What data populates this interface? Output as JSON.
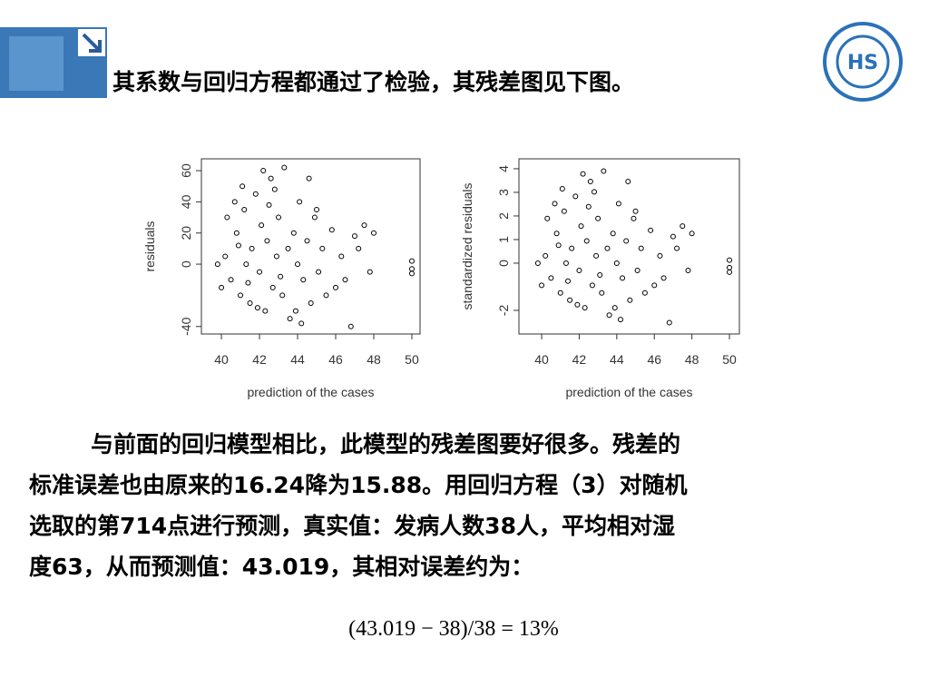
{
  "header": {
    "title": "其系数与回归方程都通过了检验，其残差图见下图。"
  },
  "chart_data": [
    {
      "type": "scatter",
      "xlabel": "prediction of the cases",
      "ylabel": "residuals",
      "color": "#000000",
      "xlim": [
        38.95,
        50.43
      ],
      "xticks": [
        40,
        42,
        44,
        46,
        48,
        50
      ],
      "ylim": [
        -44.8,
        67.6
      ],
      "yticks": [
        -40,
        0,
        20,
        40,
        60
      ],
      "x": [
        40.2,
        40.5,
        40.8,
        41.0,
        41.2,
        41.3,
        41.5,
        41.6,
        41.8,
        42.0,
        42.1,
        42.3,
        42.4,
        42.6,
        42.7,
        42.9,
        43.0,
        43.2,
        43.3,
        43.5,
        43.6,
        43.8,
        44.0,
        44.1,
        44.3,
        44.5,
        44.7,
        44.9,
        45.1,
        45.3,
        45.5,
        45.8,
        46.0,
        46.3,
        46.8,
        47.0,
        47.2,
        47.5,
        47.8,
        48.0,
        39.8,
        40.0,
        40.3,
        41.9,
        42.5,
        43.9,
        41.1,
        40.7,
        50.0,
        50.0,
        50.0,
        44.6,
        42.2,
        43.1,
        41.4,
        40.9,
        45.0,
        46.5,
        44.2,
        42.8
      ],
      "values": [
        5,
        -10,
        20,
        -20,
        35,
        0,
        -25,
        10,
        45,
        -5,
        25,
        -30,
        15,
        55,
        -15,
        5,
        30,
        -20,
        62,
        10,
        -35,
        20,
        0,
        40,
        -10,
        15,
        -25,
        30,
        -5,
        10,
        -20,
        22,
        -15,
        5,
        -40,
        18,
        10,
        25,
        -5,
        20,
        0,
        -15,
        30,
        -28,
        38,
        -30,
        50,
        40,
        2,
        -3,
        -6,
        55,
        60,
        -8,
        -12,
        12,
        35,
        -10,
        -38,
        48
      ]
    },
    {
      "type": "scatter",
      "xlabel": "prediction of the cases",
      "ylabel": "standardized residuals",
      "color": "#000000",
      "xlim": [
        38.79,
        50.53
      ],
      "xticks": [
        40,
        42,
        44,
        46,
        48,
        50
      ],
      "ylim": [
        -3.0,
        4.42
      ],
      "yticks": [
        -2,
        0,
        1,
        2,
        3,
        4
      ],
      "x": [
        40.2,
        40.5,
        40.8,
        41.0,
        41.2,
        41.3,
        41.5,
        41.6,
        41.8,
        42.0,
        42.1,
        42.3,
        42.4,
        42.6,
        42.7,
        42.9,
        43.0,
        43.2,
        43.3,
        43.5,
        43.6,
        43.8,
        44.0,
        44.1,
        44.3,
        44.5,
        44.7,
        44.9,
        45.1,
        45.3,
        45.5,
        45.8,
        46.0,
        46.3,
        46.8,
        47.0,
        47.2,
        47.5,
        47.8,
        48.0,
        39.8,
        40.0,
        40.3,
        41.9,
        42.5,
        43.9,
        41.1,
        40.7,
        50.0,
        50.0,
        50.0,
        44.6,
        42.2,
        43.1,
        41.4,
        40.9,
        45.0,
        46.5,
        44.2,
        42.8
      ],
      "values": [
        0.31,
        -0.63,
        1.26,
        -1.26,
        2.2,
        0,
        -1.57,
        0.63,
        2.83,
        -0.31,
        1.57,
        -1.89,
        0.94,
        3.46,
        -0.94,
        0.31,
        1.89,
        -1.26,
        3.9,
        0.63,
        -2.2,
        1.26,
        0,
        2.52,
        -0.63,
        0.94,
        -1.57,
        1.89,
        -0.31,
        0.63,
        -1.26,
        1.39,
        -0.94,
        0.31,
        -2.52,
        1.13,
        0.63,
        1.57,
        -0.31,
        1.26,
        0,
        -0.94,
        1.89,
        -1.76,
        2.39,
        -1.89,
        3.15,
        2.52,
        0.13,
        -0.19,
        -0.38,
        3.46,
        3.78,
        -0.5,
        -0.76,
        0.76,
        2.2,
        -0.63,
        -2.39,
        3.02
      ]
    }
  ],
  "body": {
    "lines": [
      "与前面的回归模型相比，此模型的残差图要好很多。残差的",
      "标准误差也由原来的16.24降为15.88。用回归方程（3）对随机",
      "选取的第714点进行预测，真实值：发病人数38人，平均相对湿",
      "度63，从而预测值：43.019，其相对误差约为："
    ],
    "formula": "(43.019 − 38)/38 = 13%"
  }
}
